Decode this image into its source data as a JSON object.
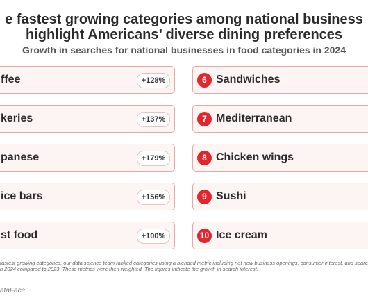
{
  "header": {
    "title_lines": [
      "e fastest growing categories among national business",
      "highlight Americans’ diverse dining preferences"
    ],
    "subtitle": "Growth in searches for national businesses in food categories in 2024"
  },
  "left": [
    {
      "label": "ffee",
      "growth": "+128%"
    },
    {
      "label": "keries",
      "growth": "+137%"
    },
    {
      "label": "panese",
      "growth": "+179%"
    },
    {
      "label": "ice bars",
      "growth": "+156%"
    },
    {
      "label": "st food",
      "growth": "+100%"
    }
  ],
  "right": [
    {
      "rank": "6",
      "label": "Sandwiches"
    },
    {
      "rank": "7",
      "label": "Mediterranean"
    },
    {
      "rank": "8",
      "label": "Chicken wings"
    },
    {
      "rank": "9",
      "label": "Sushi"
    },
    {
      "rank": "10",
      "label": "Ice cream"
    }
  ],
  "footnote_lines": [
    "fastest growing categories, our data science team ranked categories using a blended metric including net new business openings, consumer interest, and searches",
    "n 2024 compared to 2023. These metrics were then weighted. The figures indicate the growth in search interest."
  ],
  "source": "ataFace"
}
